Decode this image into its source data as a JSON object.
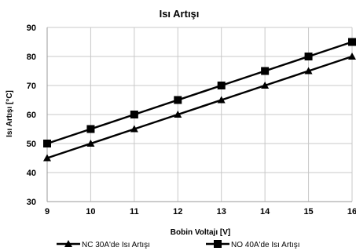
{
  "chart_data": {
    "type": "line",
    "title": "Isı Artışı",
    "xlabel": "Bobin Voltajı [V]",
    "ylabel": "Isı Artışı [°C]",
    "x": [
      9,
      10,
      11,
      12,
      13,
      14,
      15,
      16
    ],
    "xlim": [
      9,
      16
    ],
    "ylim": [
      30,
      90
    ],
    "yticks": [
      30,
      40,
      50,
      60,
      70,
      80,
      90
    ],
    "grid": true,
    "legend_position": "bottom",
    "series": [
      {
        "name": "NC 30A'de Isı Artışı",
        "marker": "triangle",
        "color": "#000000",
        "values": [
          45,
          50,
          55,
          60,
          65,
          70,
          75,
          80
        ]
      },
      {
        "name": "NO 40A'de Isı Artışı",
        "marker": "square",
        "color": "#000000",
        "values": [
          50,
          55,
          60,
          65,
          70,
          75,
          80,
          85
        ]
      }
    ]
  }
}
